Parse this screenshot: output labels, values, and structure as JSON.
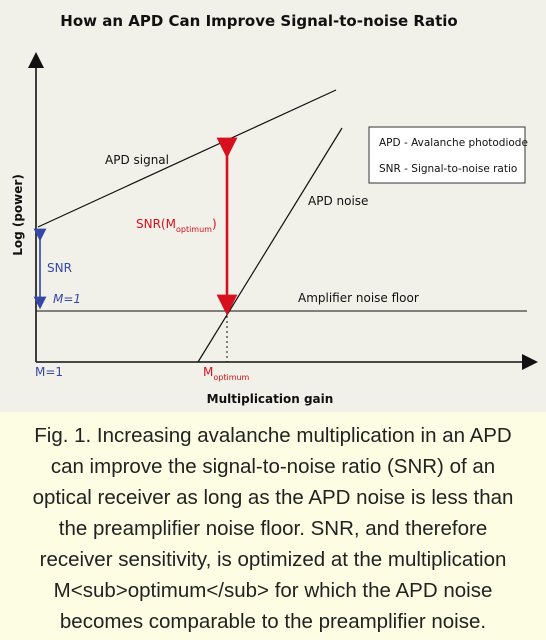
{
  "diagram": {
    "title": "How an APD Can Improve Signal-to-noise Ratio",
    "y_axis_label": "Log (power)",
    "x_axis_label": "Multiplication gain",
    "apd_signal_label": "APD signal",
    "apd_noise_label": "APD noise",
    "amp_floor_label": "Amplifier noise floor",
    "snr_opt_label": "SNR(M",
    "snr_opt_sub": "optimum",
    "snr_opt_close": ")",
    "snr_label": "SNR",
    "m1_left_label": "M=1",
    "m1_axis_label": "M=1",
    "m_opt_label": "M",
    "m_opt_sub": "optimum",
    "legend": {
      "apd_def": "APD - Avalanche photodiode",
      "snr_def": "SNR - Signal-to-noise ratio"
    },
    "colors": {
      "snr_arrow": "#d8101e",
      "m1_arrow": "#3548a8",
      "lines": "#111111",
      "background": "#f1f0e9",
      "caption_bg": "#fdfde4"
    }
  },
  "caption": {
    "line1": "Fig. 1. Increasing avalanche multiplication in an APD",
    "line2": "can improve the signal-to-noise ratio (SNR) of an",
    "line3": "optical receiver as long as the APD noise is less than",
    "line4": "the preamplifier noise floor. SNR, and therefore",
    "line5": "receiver sensitivity, is optimized at the multiplication",
    "line6": "M<sub>optimum</sub> for which the APD noise",
    "line7": "becomes comparable to the preamplifier noise."
  }
}
